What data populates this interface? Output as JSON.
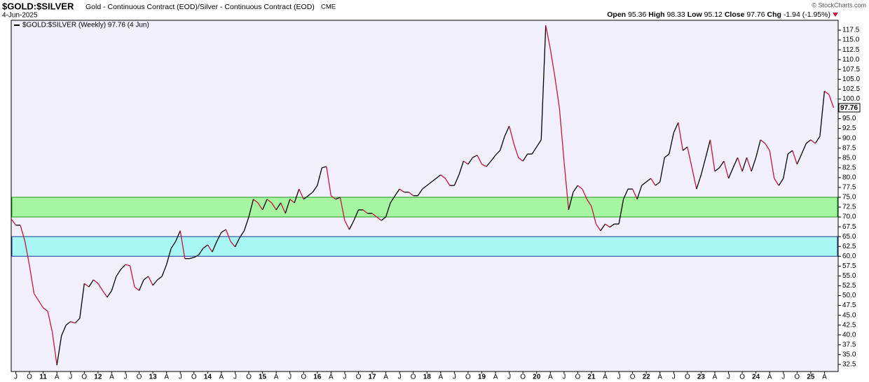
{
  "header": {
    "symbol": "$GOLD:$SILVER",
    "description": "Gold - Continuous Contract (EOD)/Silver - Continuous Contract (EOD)",
    "exchange": "CME",
    "date": "4-Jun-2025",
    "credit": "© StockCharts.com",
    "ohlc": [
      {
        "label": "Open",
        "value": 95.36
      },
      {
        "label": "High",
        "value": 98.33
      },
      {
        "label": "Low",
        "value": 95.12
      },
      {
        "label": "Close",
        "value": 97.76
      },
      {
        "label": "Chg",
        "value": -1.94,
        "value_label": "-1.94 (-1.95%)"
      }
    ]
  },
  "chart_data": {
    "type": "line",
    "up_color": "#000000",
    "down_color": "#c8143c",
    "background": "#f1f0fa",
    "x": [
      "2010-06",
      "2010-07",
      "2010-08",
      "2010-09",
      "2010-10",
      "2010-11",
      "2010-12",
      "2011-01",
      "2011-02",
      "2011-03",
      "2011-04",
      "2011-05",
      "2011-06",
      "2011-07",
      "2011-08",
      "2011-09",
      "2011-10",
      "2011-11",
      "2011-12",
      "2012-01",
      "2012-02",
      "2012-03",
      "2012-04",
      "2012-05",
      "2012-06",
      "2012-07",
      "2012-08",
      "2012-09",
      "2012-10",
      "2012-11",
      "2012-12",
      "2013-01",
      "2013-02",
      "2013-03",
      "2013-04",
      "2013-05",
      "2013-06",
      "2013-07",
      "2013-08",
      "2013-09",
      "2013-10",
      "2013-11",
      "2013-12",
      "2014-01",
      "2014-02",
      "2014-03",
      "2014-04",
      "2014-05",
      "2014-06",
      "2014-07",
      "2014-08",
      "2014-09",
      "2014-10",
      "2014-11",
      "2014-12",
      "2015-01",
      "2015-02",
      "2015-03",
      "2015-04",
      "2015-05",
      "2015-06",
      "2015-07",
      "2015-08",
      "2015-09",
      "2015-10",
      "2015-11",
      "2015-12",
      "2016-01",
      "2016-02",
      "2016-03",
      "2016-04",
      "2016-05",
      "2016-06",
      "2016-07",
      "2016-08",
      "2016-09",
      "2016-10",
      "2016-11",
      "2016-12",
      "2017-01",
      "2017-02",
      "2017-03",
      "2017-04",
      "2017-05",
      "2017-06",
      "2017-07",
      "2017-08",
      "2017-09",
      "2017-10",
      "2017-11",
      "2017-12",
      "2018-01",
      "2018-02",
      "2018-03",
      "2018-04",
      "2018-05",
      "2018-06",
      "2018-07",
      "2018-08",
      "2018-09",
      "2018-10",
      "2018-11",
      "2018-12",
      "2019-01",
      "2019-02",
      "2019-03",
      "2019-04",
      "2019-05",
      "2019-06",
      "2019-07",
      "2019-08",
      "2019-09",
      "2019-10",
      "2019-11",
      "2019-12",
      "2020-01",
      "2020-02",
      "2020-03",
      "2020-04",
      "2020-05",
      "2020-06",
      "2020-07",
      "2020-08",
      "2020-09",
      "2020-10",
      "2020-11",
      "2020-12",
      "2021-01",
      "2021-02",
      "2021-03",
      "2021-04",
      "2021-05",
      "2021-06",
      "2021-07",
      "2021-08",
      "2021-09",
      "2021-10",
      "2021-11",
      "2021-12",
      "2022-01",
      "2022-02",
      "2022-03",
      "2022-04",
      "2022-05",
      "2022-06",
      "2022-07",
      "2022-08",
      "2022-09",
      "2022-10",
      "2022-11",
      "2022-12",
      "2023-01",
      "2023-02",
      "2023-03",
      "2023-04",
      "2023-05",
      "2023-06",
      "2023-07",
      "2023-08",
      "2023-09",
      "2023-10",
      "2023-11",
      "2023-12",
      "2024-01",
      "2024-02",
      "2024-03",
      "2024-04",
      "2024-05",
      "2024-06",
      "2024-07",
      "2024-08",
      "2024-09",
      "2024-10",
      "2024-11",
      "2024-12",
      "2025-01",
      "2025-02",
      "2025-03",
      "2025-04",
      "2025-05",
      "2025-06"
    ],
    "series": [
      {
        "name": "$GOLD:$SILVER (Weekly) 97.76 (4 Jun)",
        "values": [
          69.5,
          67.9,
          67.9,
          63.8,
          57.6,
          50.5,
          48.7,
          46.9,
          46,
          40.7,
          32.3,
          39.8,
          42.5,
          43.4,
          43,
          44.2,
          53.1,
          52.2,
          54,
          53.1,
          51.3,
          49.6,
          51.3,
          54.9,
          56.7,
          57.9,
          57.6,
          52.2,
          51.3,
          54,
          54.9,
          52.6,
          54,
          54.9,
          57.9,
          62,
          63.8,
          66.5,
          59.4,
          59.4,
          59.7,
          60.3,
          62,
          62.9,
          61.1,
          63.8,
          66.1,
          66.8,
          63.8,
          62.4,
          64.7,
          66.5,
          70,
          74.5,
          73.6,
          71.8,
          74.5,
          73.6,
          71.8,
          73.6,
          70.9,
          74.5,
          73.6,
          77.1,
          74.5,
          75.4,
          76.3,
          78,
          82.5,
          82.8,
          75.4,
          74.5,
          75,
          69.1,
          66.8,
          69.1,
          71.8,
          71.8,
          70.9,
          70.9,
          70,
          69.1,
          70,
          73.6,
          75.4,
          77.1,
          76.3,
          76.3,
          75.4,
          75.4,
          77.1,
          78,
          78.9,
          79.8,
          80.7,
          79.8,
          78,
          78,
          80.7,
          84.2,
          83.4,
          85.1,
          85.7,
          83.4,
          82.8,
          84.2,
          85.7,
          86.9,
          90.5,
          93.1,
          88.7,
          85.1,
          84.2,
          86,
          86,
          87.8,
          89.6,
          118.7,
          112.7,
          105.6,
          97.6,
          84.2,
          71.8,
          76.3,
          78,
          77.1,
          74.5,
          72.7,
          68.2,
          66.5,
          68.2,
          67.4,
          68.2,
          68.2,
          74.5,
          77.1,
          77.1,
          74.5,
          78,
          78.9,
          79.8,
          78,
          78.9,
          85.1,
          86,
          91.4,
          94,
          86.9,
          87.8,
          82.5,
          77.1,
          80.7,
          85.1,
          89.6,
          81.6,
          82.5,
          84.2,
          79.8,
          82.5,
          85.1,
          81.6,
          85.1,
          81.6,
          85.1,
          89.6,
          88.7,
          86.9,
          79.8,
          78,
          79.8,
          86,
          86.9,
          83.4,
          86,
          88.7,
          89.6,
          88.7,
          90.5,
          102,
          101.1,
          97.76
        ]
      }
    ],
    "bands": [
      {
        "from": 70,
        "to": 75,
        "color": "#a6f5a0",
        "border": "#1f9a1f"
      },
      {
        "from": 60,
        "to": 65,
        "color": "#a8f7f4",
        "border": "#1a3a8a"
      }
    ],
    "xlim": [
      "2010-06",
      "2025-07"
    ],
    "xticks": [
      {
        "value": "2010-07",
        "label": "J"
      },
      {
        "value": "2010-10",
        "label": "O"
      },
      {
        "value": "2011-01",
        "label": "11"
      },
      {
        "value": "2011-04",
        "label": "A"
      },
      {
        "value": "2011-07",
        "label": "J"
      },
      {
        "value": "2011-10",
        "label": "O"
      },
      {
        "value": "2012-01",
        "label": "12"
      },
      {
        "value": "2012-04",
        "label": "A"
      },
      {
        "value": "2012-07",
        "label": "J"
      },
      {
        "value": "2012-10",
        "label": "O"
      },
      {
        "value": "2013-01",
        "label": "13"
      },
      {
        "value": "2013-04",
        "label": "A"
      },
      {
        "value": "2013-07",
        "label": "J"
      },
      {
        "value": "2013-10",
        "label": "O"
      },
      {
        "value": "2014-01",
        "label": "14"
      },
      {
        "value": "2014-04",
        "label": "A"
      },
      {
        "value": "2014-07",
        "label": "J"
      },
      {
        "value": "2014-10",
        "label": "O"
      },
      {
        "value": "2015-01",
        "label": "15"
      },
      {
        "value": "2015-04",
        "label": "A"
      },
      {
        "value": "2015-07",
        "label": "J"
      },
      {
        "value": "2015-10",
        "label": "O"
      },
      {
        "value": "2016-01",
        "label": "16"
      },
      {
        "value": "2016-04",
        "label": "A"
      },
      {
        "value": "2016-07",
        "label": "J"
      },
      {
        "value": "2016-10",
        "label": "O"
      },
      {
        "value": "2017-01",
        "label": "17"
      },
      {
        "value": "2017-04",
        "label": "A"
      },
      {
        "value": "2017-07",
        "label": "J"
      },
      {
        "value": "2017-10",
        "label": "O"
      },
      {
        "value": "2018-01",
        "label": "18"
      },
      {
        "value": "2018-04",
        "label": "A"
      },
      {
        "value": "2018-07",
        "label": "J"
      },
      {
        "value": "2018-10",
        "label": "O"
      },
      {
        "value": "2019-01",
        "label": "19"
      },
      {
        "value": "2019-04",
        "label": "A"
      },
      {
        "value": "2019-07",
        "label": "J"
      },
      {
        "value": "2019-10",
        "label": "O"
      },
      {
        "value": "2020-01",
        "label": "20"
      },
      {
        "value": "2020-04",
        "label": "A"
      },
      {
        "value": "2020-07",
        "label": "J"
      },
      {
        "value": "2020-10",
        "label": "O"
      },
      {
        "value": "2021-01",
        "label": "21"
      },
      {
        "value": "2021-04",
        "label": "A"
      },
      {
        "value": "2021-07",
        "label": "J"
      },
      {
        "value": "2021-10",
        "label": "O"
      },
      {
        "value": "2022-01",
        "label": "22"
      },
      {
        "value": "2022-04",
        "label": "A"
      },
      {
        "value": "2022-07",
        "label": "J"
      },
      {
        "value": "2022-10",
        "label": "O"
      },
      {
        "value": "2023-01",
        "label": "23"
      },
      {
        "value": "2023-04",
        "label": "A"
      },
      {
        "value": "2023-07",
        "label": "J"
      },
      {
        "value": "2023-10",
        "label": "O"
      },
      {
        "value": "2024-01",
        "label": "24"
      },
      {
        "value": "2024-04",
        "label": "A"
      },
      {
        "value": "2024-07",
        "label": "J"
      },
      {
        "value": "2024-10",
        "label": "O"
      },
      {
        "value": "2025-01",
        "label": "25"
      },
      {
        "value": "2025-04",
        "label": "A"
      }
    ],
    "ylim": [
      30.7,
      120
    ],
    "yticks": [
      32.5,
      {
        "value": 35,
        "label": "35.0"
      },
      37.5,
      {
        "value": 40,
        "label": "40.0"
      },
      42.5,
      {
        "value": 45,
        "label": "45.0"
      },
      47.5,
      {
        "value": 50,
        "label": "50.0"
      },
      52.5,
      {
        "value": 55,
        "label": "55.0"
      },
      57.5,
      {
        "value": 60,
        "label": "60.0"
      },
      62.5,
      {
        "value": 65,
        "label": "65.0"
      },
      67.5,
      {
        "value": 70,
        "label": "70.0"
      },
      72.5,
      {
        "value": 75,
        "label": "75.0"
      },
      77.5,
      {
        "value": 80,
        "label": "80.0"
      },
      82.5,
      {
        "value": 85,
        "label": "85.0"
      },
      87.5,
      {
        "value": 90,
        "label": "90.0"
      },
      92.5,
      {
        "value": 95,
        "label": "95.0"
      },
      97.5,
      {
        "value": 100,
        "label": "100.0"
      },
      102.5,
      {
        "value": 105,
        "label": "105.0"
      },
      107.5,
      {
        "value": 110,
        "label": "110.0"
      },
      112.5,
      {
        "value": 115,
        "label": "115.0"
      },
      117.5
    ]
  }
}
